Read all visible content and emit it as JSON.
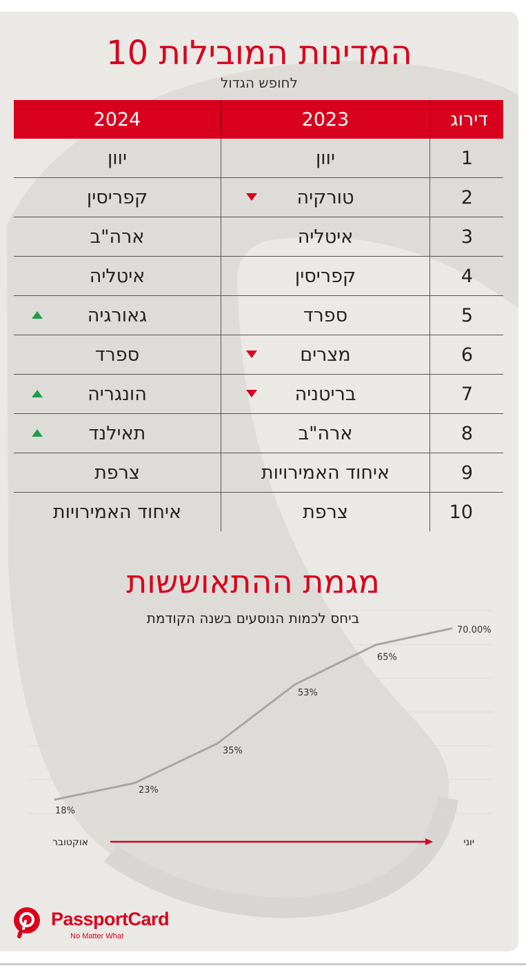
{
  "header": {
    "title": "10 המדינות המובילות",
    "subtitle": "לחופש הגדול"
  },
  "table": {
    "columns": [
      "דירוג",
      "2023",
      "2024"
    ],
    "rows": [
      {
        "rank": "1",
        "y2023": "יוון",
        "y2024": "יוון",
        "trend2023": "",
        "trend2024": ""
      },
      {
        "rank": "2",
        "y2023": "טורקיה",
        "y2024": "קפריסין",
        "trend2023": "down",
        "trend2024": ""
      },
      {
        "rank": "3",
        "y2023": "איטליה",
        "y2024": "ארה\"ב",
        "trend2023": "",
        "trend2024": ""
      },
      {
        "rank": "4",
        "y2023": "קפריסין",
        "y2024": "איטליה",
        "trend2023": "",
        "trend2024": ""
      },
      {
        "rank": "5",
        "y2023": "ספרד",
        "y2024": "גאורגיה",
        "trend2023": "",
        "trend2024": "up"
      },
      {
        "rank": "6",
        "y2023": "מצרים",
        "y2024": "ספרד",
        "trend2023": "down",
        "trend2024": ""
      },
      {
        "rank": "7",
        "y2023": "בריטניה",
        "y2024": "הונגריה",
        "trend2023": "down",
        "trend2024": "up"
      },
      {
        "rank": "8",
        "y2023": "ארה\"ב",
        "y2024": "תאילנד",
        "trend2023": "",
        "trend2024": "up"
      },
      {
        "rank": "9",
        "y2023": "איחוד האמירויות",
        "y2024": "צרפת",
        "trend2023": "",
        "trend2024": ""
      },
      {
        "rank": "10",
        "y2023": "צרפת",
        "y2024": "איחוד האמירויות",
        "trend2023": "",
        "trend2024": ""
      }
    ]
  },
  "growth": {
    "title": "מגמת ההתאוששות",
    "subtitle": "ביחס לכמות הנוסעים בשנה הקודמת",
    "start_label": "אוקטובר",
    "end_label": "יוני"
  },
  "chart_data": {
    "type": "line",
    "values": [
      18,
      23,
      35,
      53,
      65,
      70
    ],
    "labels": [
      "18%",
      "23%",
      "35%",
      "53%",
      "65%",
      "70.00%"
    ],
    "ylim": [
      10,
      75
    ],
    "line_color": "#a8a6a3"
  },
  "brand": {
    "name": "PassportCard",
    "tagline": "No Matter What"
  },
  "colors": {
    "accent": "#d9001d",
    "up": "#1e9e4a",
    "down": "#d9001d",
    "background": "#ebe9e5"
  }
}
